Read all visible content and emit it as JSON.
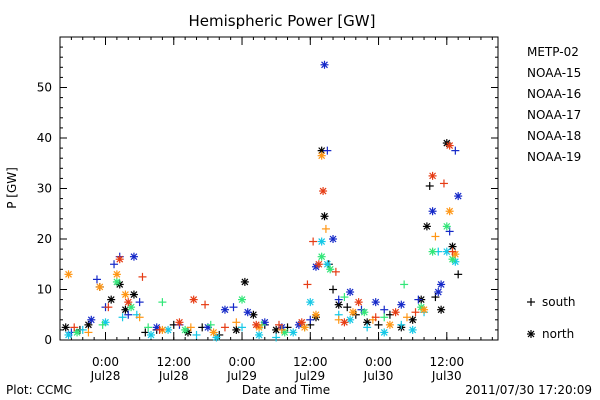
{
  "chart_data": {
    "type": "scatter",
    "title": "Hemispheric Power [GW]",
    "ylabel": "P [GW]",
    "xlabel": "Date and Time",
    "ylim": [
      0,
      60
    ],
    "yticks": [
      0,
      10,
      20,
      30,
      40,
      50
    ],
    "xlim": [
      "2011-07-27T16:00",
      "2011-07-30T21:00"
    ],
    "xticks": [
      {
        "time": "2011-07-28T00:00",
        "line1": "0:00",
        "line2": "Jul28"
      },
      {
        "time": "2011-07-28T12:00",
        "line1": "12:00",
        "line2": "Jul28"
      },
      {
        "time": "2011-07-29T00:00",
        "line1": "0:00",
        "line2": "Jul29"
      },
      {
        "time": "2011-07-29T12:00",
        "line1": "12:00",
        "line2": "Jul29"
      },
      {
        "time": "2011-07-30T00:00",
        "line1": "0:00",
        "line2": "Jul30"
      },
      {
        "time": "2011-07-30T12:00",
        "line1": "12:00",
        "line2": "Jul30"
      }
    ],
    "marker_legend": [
      {
        "symbol": "+",
        "label": "south"
      },
      {
        "symbol": "*",
        "label": "north"
      }
    ],
    "series": [
      {
        "name": "METP-02",
        "color": "#000000",
        "points": [
          [
            "2011-07-27T17:00",
            2.5,
            "n"
          ],
          [
            "2011-07-27T19:30",
            2.0,
            "s"
          ],
          [
            "2011-07-27T21:00",
            3.0,
            "n"
          ],
          [
            "2011-07-27T23:00",
            10.5,
            "s"
          ],
          [
            "2011-07-28T01:00",
            8.0,
            "n"
          ],
          [
            "2011-07-28T02:30",
            11.0,
            "n"
          ],
          [
            "2011-07-28T03:30",
            6.0,
            "n"
          ],
          [
            "2011-07-28T05:00",
            9.0,
            "n"
          ],
          [
            "2011-07-28T07:00",
            1.5,
            "s"
          ],
          [
            "2011-07-28T09:00",
            2.0,
            "s"
          ],
          [
            "2011-07-28T12:00",
            3.0,
            "s"
          ],
          [
            "2011-07-28T14:30",
            1.5,
            "n"
          ],
          [
            "2011-07-28T17:00",
            2.5,
            "s"
          ],
          [
            "2011-07-28T20:00",
            1.0,
            "s"
          ],
          [
            "2011-07-28T23:00",
            2.0,
            "n"
          ],
          [
            "2011-07-29T00:30",
            11.5,
            "n"
          ],
          [
            "2011-07-29T02:00",
            5.0,
            "n"
          ],
          [
            "2011-07-29T04:00",
            3.0,
            "s"
          ],
          [
            "2011-07-29T06:00",
            2.0,
            "n"
          ],
          [
            "2011-07-29T08:00",
            2.5,
            "s"
          ],
          [
            "2011-07-29T12:00",
            3.0,
            "s"
          ],
          [
            "2011-07-29T13:00",
            4.5,
            "n"
          ],
          [
            "2011-07-29T14:00",
            37.5,
            "n"
          ],
          [
            "2011-07-29T14:30",
            24.5,
            "n"
          ],
          [
            "2011-07-29T15:15",
            15.0,
            "s"
          ],
          [
            "2011-07-29T16:00",
            10.0,
            "s"
          ],
          [
            "2011-07-29T17:00",
            7.0,
            "n"
          ],
          [
            "2011-07-29T18:30",
            6.5,
            "s"
          ],
          [
            "2011-07-29T20:00",
            5.0,
            "s"
          ],
          [
            "2011-07-29T22:00",
            3.5,
            "n"
          ],
          [
            "2011-07-30T00:00",
            3.0,
            "s"
          ],
          [
            "2011-07-30T02:00",
            5.0,
            "s"
          ],
          [
            "2011-07-30T04:00",
            2.5,
            "n"
          ],
          [
            "2011-07-30T06:00",
            4.0,
            "n"
          ],
          [
            "2011-07-30T07:30",
            8.0,
            "n"
          ],
          [
            "2011-07-30T08:30",
            22.5,
            "n"
          ],
          [
            "2011-07-30T09:00",
            30.5,
            "s"
          ],
          [
            "2011-07-30T10:00",
            8.5,
            "s"
          ],
          [
            "2011-07-30T11:00",
            6.0,
            "n"
          ],
          [
            "2011-07-30T12:00",
            39.0,
            "n"
          ],
          [
            "2011-07-30T13:00",
            18.5,
            "n"
          ],
          [
            "2011-07-30T14:00",
            13.0,
            "s"
          ]
        ]
      },
      {
        "name": "NOAA-15",
        "color": "#1428c8",
        "points": [
          [
            "2011-07-27T18:00",
            1.5,
            "s"
          ],
          [
            "2011-07-27T21:30",
            4.0,
            "n"
          ],
          [
            "2011-07-27T22:30",
            12.0,
            "s"
          ],
          [
            "2011-07-28T00:00",
            6.5,
            "s"
          ],
          [
            "2011-07-28T01:30",
            15.0,
            "s"
          ],
          [
            "2011-07-28T02:30",
            16.5,
            "s"
          ],
          [
            "2011-07-28T04:00",
            5.0,
            "s"
          ],
          [
            "2011-07-28T05:00",
            16.5,
            "n"
          ],
          [
            "2011-07-28T06:00",
            7.5,
            "s"
          ],
          [
            "2011-07-28T09:00",
            2.5,
            "n"
          ],
          [
            "2011-07-28T13:00",
            3.0,
            "s"
          ],
          [
            "2011-07-28T18:00",
            2.5,
            "n"
          ],
          [
            "2011-07-28T21:00",
            6.0,
            "n"
          ],
          [
            "2011-07-28T22:30",
            6.5,
            "s"
          ],
          [
            "2011-07-29T01:00",
            5.5,
            "n"
          ],
          [
            "2011-07-29T04:00",
            3.5,
            "n"
          ],
          [
            "2011-07-29T07:00",
            2.5,
            "n"
          ],
          [
            "2011-07-29T10:00",
            3.0,
            "n"
          ],
          [
            "2011-07-29T12:00",
            4.0,
            "s"
          ],
          [
            "2011-07-29T13:00",
            14.5,
            "n"
          ],
          [
            "2011-07-29T14:30",
            54.5,
            "n"
          ],
          [
            "2011-07-29T15:00",
            37.5,
            "s"
          ],
          [
            "2011-07-29T16:00",
            20.0,
            "n"
          ],
          [
            "2011-07-29T17:00",
            8.0,
            "s"
          ],
          [
            "2011-07-29T19:00",
            9.5,
            "n"
          ],
          [
            "2011-07-29T21:00",
            6.0,
            "s"
          ],
          [
            "2011-07-29T23:30",
            7.5,
            "n"
          ],
          [
            "2011-07-30T01:00",
            6.0,
            "s"
          ],
          [
            "2011-07-30T04:00",
            7.0,
            "n"
          ],
          [
            "2011-07-30T07:00",
            8.0,
            "s"
          ],
          [
            "2011-07-30T09:30",
            25.5,
            "n"
          ],
          [
            "2011-07-30T10:30",
            9.5,
            "n"
          ],
          [
            "2011-07-30T11:00",
            11.0,
            "n"
          ],
          [
            "2011-07-30T12:30",
            21.5,
            "s"
          ],
          [
            "2011-07-30T13:30",
            37.5,
            "s"
          ],
          [
            "2011-07-30T14:00",
            28.5,
            "n"
          ]
        ]
      },
      {
        "name": "NOAA-16",
        "color": "#14c8e6",
        "points": [
          [
            "2011-07-27T17:30",
            1.0,
            "n"
          ],
          [
            "2011-07-27T20:00",
            2.0,
            "s"
          ],
          [
            "2011-07-28T00:00",
            3.5,
            "n"
          ],
          [
            "2011-07-28T03:00",
            4.5,
            "s"
          ],
          [
            "2011-07-28T05:30",
            5.0,
            "s"
          ],
          [
            "2011-07-28T08:00",
            1.0,
            "n"
          ],
          [
            "2011-07-28T11:00",
            2.0,
            "n"
          ],
          [
            "2011-07-28T16:00",
            1.0,
            "s"
          ],
          [
            "2011-07-28T19:30",
            0.5,
            "n"
          ],
          [
            "2011-07-29T00:00",
            2.5,
            "s"
          ],
          [
            "2011-07-29T03:00",
            1.0,
            "n"
          ],
          [
            "2011-07-29T06:00",
            0.5,
            "s"
          ],
          [
            "2011-07-29T09:00",
            1.5,
            "n"
          ],
          [
            "2011-07-29T12:00",
            7.5,
            "n"
          ],
          [
            "2011-07-29T14:00",
            19.5,
            "n"
          ],
          [
            "2011-07-29T15:00",
            15.0,
            "n"
          ],
          [
            "2011-07-29T17:00",
            5.0,
            "s"
          ],
          [
            "2011-07-29T19:00",
            4.0,
            "n"
          ],
          [
            "2011-07-29T22:00",
            2.5,
            "s"
          ],
          [
            "2011-07-30T01:00",
            1.5,
            "n"
          ],
          [
            "2011-07-30T04:00",
            3.0,
            "s"
          ],
          [
            "2011-07-30T06:00",
            2.0,
            "n"
          ],
          [
            "2011-07-30T08:00",
            5.5,
            "s"
          ],
          [
            "2011-07-30T10:30",
            17.5,
            "s"
          ],
          [
            "2011-07-30T12:00",
            17.5,
            "n"
          ],
          [
            "2011-07-30T13:30",
            15.5,
            "n"
          ]
        ]
      },
      {
        "name": "NOAA-17",
        "color": "#32e678",
        "points": [
          [
            "2011-07-27T19:00",
            1.5,
            "n"
          ],
          [
            "2011-07-27T23:30",
            3.0,
            "s"
          ],
          [
            "2011-07-28T02:00",
            11.5,
            "n"
          ],
          [
            "2011-07-28T04:30",
            6.5,
            "n"
          ],
          [
            "2011-07-28T07:30",
            2.5,
            "s"
          ],
          [
            "2011-07-28T10:00",
            7.5,
            "s"
          ],
          [
            "2011-07-28T14:00",
            2.0,
            "n"
          ],
          [
            "2011-07-28T18:30",
            3.0,
            "s"
          ],
          [
            "2011-07-29T00:00",
            8.0,
            "n"
          ],
          [
            "2011-07-29T03:30",
            3.0,
            "s"
          ],
          [
            "2011-07-29T07:30",
            1.5,
            "n"
          ],
          [
            "2011-07-29T11:00",
            2.5,
            "s"
          ],
          [
            "2011-07-29T14:00",
            16.5,
            "n"
          ],
          [
            "2011-07-29T15:30",
            14.0,
            "n"
          ],
          [
            "2011-07-29T18:00",
            8.5,
            "s"
          ],
          [
            "2011-07-29T21:30",
            5.5,
            "n"
          ],
          [
            "2011-07-30T01:00",
            4.5,
            "s"
          ],
          [
            "2011-07-30T04:30",
            11.0,
            "s"
          ],
          [
            "2011-07-30T07:30",
            6.5,
            "n"
          ],
          [
            "2011-07-30T09:30",
            17.5,
            "n"
          ],
          [
            "2011-07-30T12:00",
            22.5,
            "n"
          ],
          [
            "2011-07-30T13:00",
            16.0,
            "n"
          ]
        ]
      },
      {
        "name": "NOAA-18",
        "color": "#ff9614",
        "points": [
          [
            "2011-07-27T17:30",
            13.0,
            "n"
          ],
          [
            "2011-07-27T21:00",
            1.5,
            "s"
          ],
          [
            "2011-07-27T23:00",
            10.5,
            "n"
          ],
          [
            "2011-07-28T02:00",
            13.0,
            "n"
          ],
          [
            "2011-07-28T03:30",
            9.0,
            "n"
          ],
          [
            "2011-07-28T06:00",
            4.5,
            "s"
          ],
          [
            "2011-07-28T10:00",
            2.0,
            "n"
          ],
          [
            "2011-07-28T15:00",
            2.5,
            "s"
          ],
          [
            "2011-07-28T19:00",
            1.5,
            "n"
          ],
          [
            "2011-07-28T23:00",
            3.5,
            "s"
          ],
          [
            "2011-07-29T03:00",
            2.5,
            "n"
          ],
          [
            "2011-07-29T07:00",
            2.0,
            "s"
          ],
          [
            "2011-07-29T11:00",
            2.5,
            "n"
          ],
          [
            "2011-07-29T13:00",
            5.0,
            "n"
          ],
          [
            "2011-07-29T14:00",
            36.5,
            "n"
          ],
          [
            "2011-07-29T14:45",
            22.0,
            "s"
          ],
          [
            "2011-07-29T17:00",
            4.0,
            "s"
          ],
          [
            "2011-07-29T19:30",
            5.5,
            "n"
          ],
          [
            "2011-07-29T23:00",
            4.0,
            "s"
          ],
          [
            "2011-07-30T02:00",
            3.0,
            "n"
          ],
          [
            "2011-07-30T05:00",
            4.5,
            "s"
          ],
          [
            "2011-07-30T08:00",
            6.0,
            "n"
          ],
          [
            "2011-07-30T10:00",
            20.5,
            "s"
          ],
          [
            "2011-07-30T12:30",
            25.5,
            "n"
          ],
          [
            "2011-07-30T13:30",
            17.0,
            "n"
          ]
        ]
      },
      {
        "name": "NOAA-19",
        "color": "#e63c14",
        "points": [
          [
            "2011-07-27T18:30",
            2.5,
            "s"
          ],
          [
            "2011-07-28T00:30",
            6.5,
            "s"
          ],
          [
            "2011-07-28T02:30",
            16.0,
            "n"
          ],
          [
            "2011-07-28T04:00",
            7.5,
            "n"
          ],
          [
            "2011-07-28T06:30",
            12.5,
            "s"
          ],
          [
            "2011-07-28T09:30",
            2.0,
            "s"
          ],
          [
            "2011-07-28T13:00",
            3.5,
            "n"
          ],
          [
            "2011-07-28T15:30",
            8.0,
            "n"
          ],
          [
            "2011-07-28T17:30",
            7.0,
            "s"
          ],
          [
            "2011-07-28T21:00",
            2.5,
            "s"
          ],
          [
            "2011-07-29T02:30",
            3.0,
            "n"
          ],
          [
            "2011-07-29T06:30",
            3.0,
            "s"
          ],
          [
            "2011-07-29T10:30",
            3.5,
            "n"
          ],
          [
            "2011-07-29T11:30",
            11.0,
            "s"
          ],
          [
            "2011-07-29T12:30",
            19.5,
            "s"
          ],
          [
            "2011-07-29T13:30",
            15.0,
            "n"
          ],
          [
            "2011-07-29T14:15",
            29.5,
            "n"
          ],
          [
            "2011-07-29T16:30",
            13.5,
            "s"
          ],
          [
            "2011-07-29T18:00",
            3.5,
            "n"
          ],
          [
            "2011-07-29T20:30",
            7.5,
            "n"
          ],
          [
            "2011-07-29T23:30",
            4.5,
            "s"
          ],
          [
            "2011-07-30T03:00",
            5.5,
            "n"
          ],
          [
            "2011-07-30T06:30",
            5.5,
            "s"
          ],
          [
            "2011-07-30T09:30",
            32.5,
            "n"
          ],
          [
            "2011-07-30T11:30",
            31.0,
            "s"
          ],
          [
            "2011-07-30T12:30",
            38.5,
            "n"
          ],
          [
            "2011-07-30T13:00",
            17.5,
            "s"
          ]
        ]
      }
    ]
  },
  "footer": {
    "left": "Plot: CCMC",
    "center": "Date and Time",
    "right": "2011/07/30 17:20:09"
  }
}
